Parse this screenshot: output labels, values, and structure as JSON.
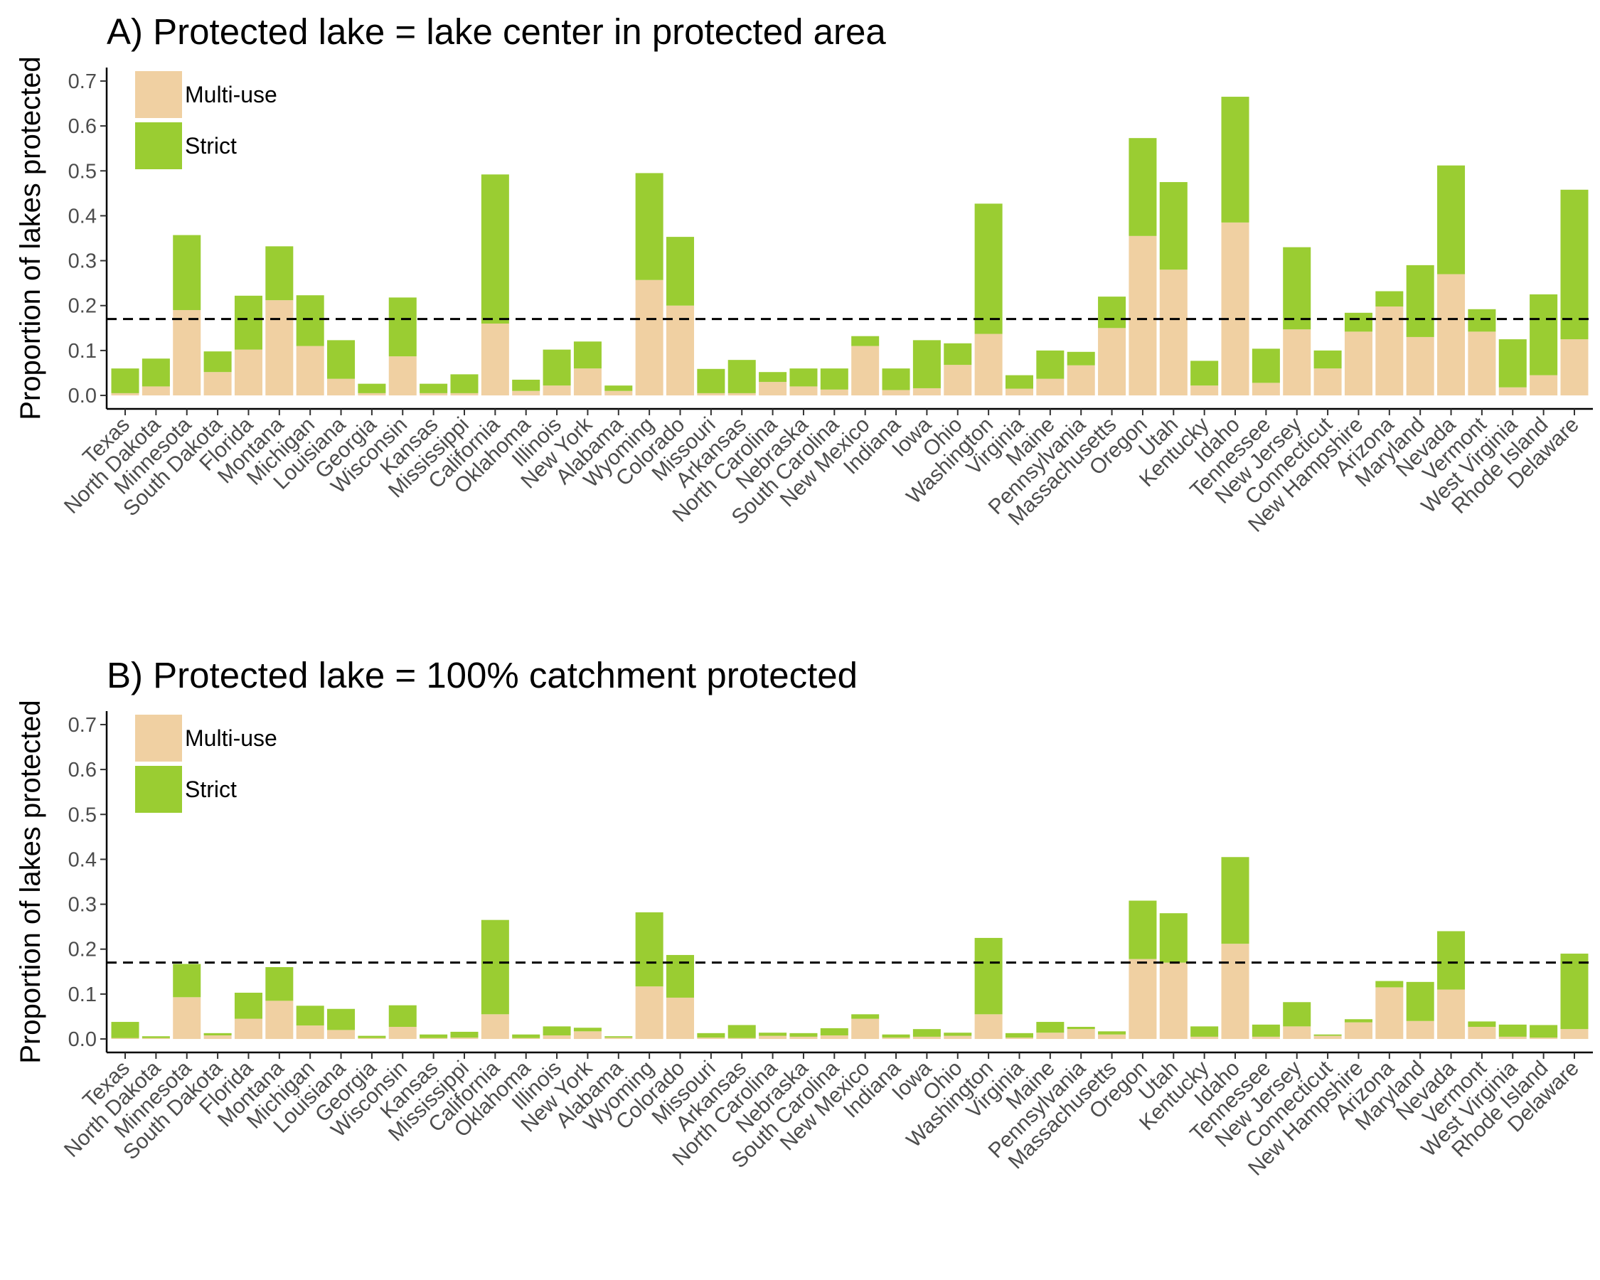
{
  "chart_data": [
    {
      "type": "bar",
      "stacked": true,
      "title": "A) Protected lake = lake center in protected area",
      "ylabel": "Proportion of lakes protected",
      "xlabel": "",
      "ylim": [
        -0.03,
        0.73
      ],
      "yticks": [
        0.0,
        0.1,
        0.2,
        0.3,
        0.4,
        0.5,
        0.6,
        0.7
      ],
      "ytick_labels": [
        "0.0",
        "0.1",
        "0.2",
        "0.3",
        "0.4",
        "0.5",
        "0.6",
        "0.7"
      ],
      "reference_line": 0.17,
      "legend": {
        "placement": "top-left",
        "labels": [
          "Multi-use",
          "Strict"
        ]
      },
      "categories": [
        "Texas",
        "North Dakota",
        "Minnesota",
        "South Dakota",
        "Florida",
        "Montana",
        "Michigan",
        "Louisiana",
        "Georgia",
        "Wisconsin",
        "Kansas",
        "Mississippi",
        "California",
        "Oklahoma",
        "Illinois",
        "New York",
        "Alabama",
        "Wyoming",
        "Colorado",
        "Missouri",
        "Arkansas",
        "North Carolina",
        "Nebraska",
        "South Carolina",
        "New Mexico",
        "Indiana",
        "Iowa",
        "Ohio",
        "Washington",
        "Virginia",
        "Maine",
        "Pennsylvania",
        "Massachusetts",
        "Oregon",
        "Utah",
        "Kentucky",
        "Idaho",
        "Tennessee",
        "New Jersey",
        "Connecticut",
        "New Hampshire",
        "Arizona",
        "Maryland",
        "Nevada",
        "Vermont",
        "West Virginia",
        "Rhode Island",
        "Delaware"
      ],
      "series": [
        {
          "name": "Multi-use",
          "color": "#f0d0a2",
          "values": [
            0.005,
            0.02,
            0.19,
            0.052,
            0.102,
            0.212,
            0.11,
            0.037,
            0.005,
            0.087,
            0.005,
            0.005,
            0.16,
            0.01,
            0.022,
            0.06,
            0.01,
            0.257,
            0.2,
            0.005,
            0.005,
            0.03,
            0.02,
            0.013,
            0.11,
            0.012,
            0.016,
            0.068,
            0.137,
            0.015,
            0.037,
            0.067,
            0.15,
            0.355,
            0.28,
            0.022,
            0.385,
            0.028,
            0.147,
            0.06,
            0.142,
            0.198,
            0.13,
            0.27,
            0.142,
            0.018,
            0.045,
            0.125
          ]
        },
        {
          "name": "Strict",
          "color": "#9acd32",
          "values": [
            0.055,
            0.062,
            0.167,
            0.046,
            0.12,
            0.12,
            0.113,
            0.086,
            0.021,
            0.131,
            0.021,
            0.042,
            0.332,
            0.025,
            0.08,
            0.06,
            0.012,
            0.238,
            0.153,
            0.054,
            0.074,
            0.022,
            0.04,
            0.047,
            0.022,
            0.048,
            0.107,
            0.048,
            0.29,
            0.03,
            0.063,
            0.03,
            0.07,
            0.218,
            0.195,
            0.055,
            0.28,
            0.076,
            0.183,
            0.04,
            0.042,
            0.034,
            0.16,
            0.242,
            0.05,
            0.107,
            0.18,
            0.333
          ]
        }
      ]
    },
    {
      "type": "bar",
      "stacked": true,
      "title": "B) Protected lake = 100% catchment protected",
      "ylabel": "Proportion of lakes protected",
      "xlabel": "",
      "ylim": [
        -0.03,
        0.73
      ],
      "yticks": [
        0.0,
        0.1,
        0.2,
        0.3,
        0.4,
        0.5,
        0.6,
        0.7
      ],
      "ytick_labels": [
        "0.0",
        "0.1",
        "0.2",
        "0.3",
        "0.4",
        "0.5",
        "0.6",
        "0.7"
      ],
      "reference_line": 0.17,
      "legend": {
        "placement": "top-left",
        "labels": [
          "Multi-use",
          "Strict"
        ]
      },
      "categories": [
        "Texas",
        "North Dakota",
        "Minnesota",
        "South Dakota",
        "Florida",
        "Montana",
        "Michigan",
        "Louisiana",
        "Georgia",
        "Wisconsin",
        "Kansas",
        "Mississippi",
        "California",
        "Oklahoma",
        "Illinois",
        "New York",
        "Alabama",
        "Wyoming",
        "Colorado",
        "Missouri",
        "Arkansas",
        "North Carolina",
        "Nebraska",
        "South Carolina",
        "New Mexico",
        "Indiana",
        "Iowa",
        "Ohio",
        "Washington",
        "Virginia",
        "Maine",
        "Pennsylvania",
        "Massachusetts",
        "Oregon",
        "Utah",
        "Kentucky",
        "Idaho",
        "Tennessee",
        "New Jersey",
        "Connecticut",
        "New Hampshire",
        "Arizona",
        "Maryland",
        "Nevada",
        "Vermont",
        "West Virginia",
        "Rhode Island",
        "Delaware"
      ],
      "series": [
        {
          "name": "Multi-use",
          "color": "#f0d0a2",
          "values": [
            0.002,
            0.002,
            0.093,
            0.008,
            0.045,
            0.085,
            0.03,
            0.02,
            0.002,
            0.027,
            0.002,
            0.003,
            0.055,
            0.002,
            0.008,
            0.017,
            0.003,
            0.117,
            0.092,
            0.003,
            0.002,
            0.007,
            0.005,
            0.008,
            0.045,
            0.003,
            0.005,
            0.007,
            0.055,
            0.003,
            0.014,
            0.022,
            0.01,
            0.178,
            0.17,
            0.005,
            0.212,
            0.005,
            0.028,
            0.007,
            0.037,
            0.115,
            0.04,
            0.11,
            0.027,
            0.005,
            0.003,
            0.022
          ]
        },
        {
          "name": "Strict",
          "color": "#9acd32",
          "values": [
            0.036,
            0.004,
            0.074,
            0.005,
            0.058,
            0.075,
            0.044,
            0.047,
            0.005,
            0.048,
            0.008,
            0.013,
            0.21,
            0.008,
            0.02,
            0.008,
            0.003,
            0.165,
            0.095,
            0.01,
            0.029,
            0.007,
            0.008,
            0.016,
            0.01,
            0.007,
            0.017,
            0.007,
            0.17,
            0.01,
            0.024,
            0.005,
            0.007,
            0.13,
            0.11,
            0.023,
            0.193,
            0.027,
            0.054,
            0.003,
            0.007,
            0.014,
            0.087,
            0.13,
            0.012,
            0.027,
            0.028,
            0.168
          ]
        }
      ]
    }
  ]
}
